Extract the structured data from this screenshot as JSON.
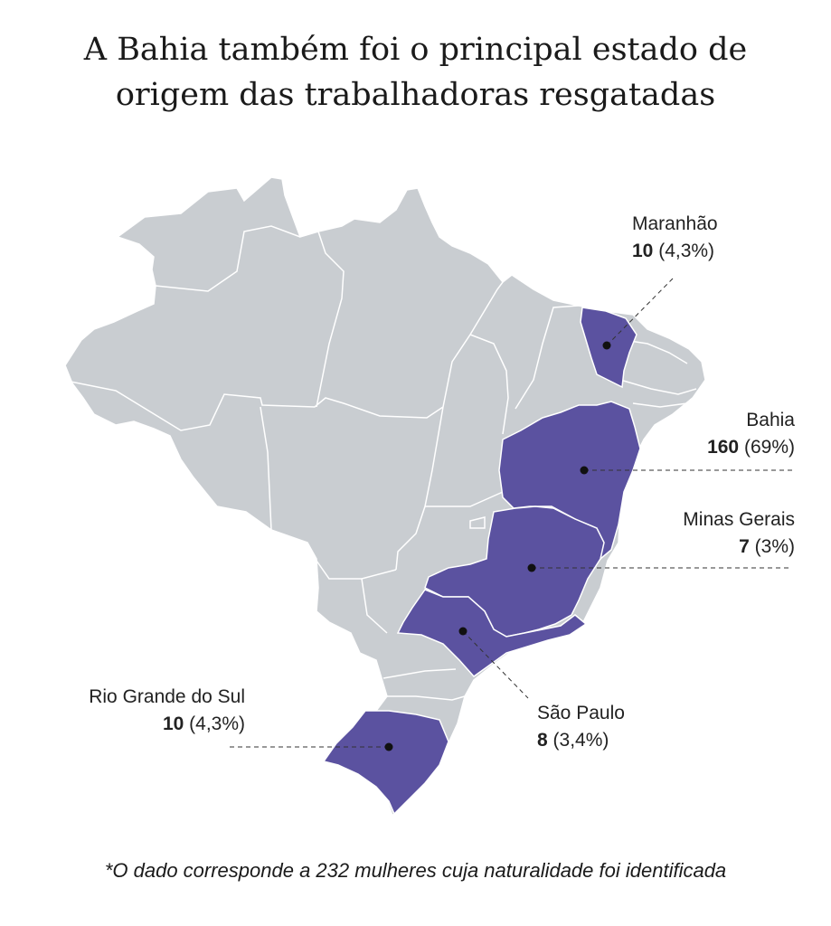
{
  "title": {
    "line1": "A Bahia também foi o principal estado de",
    "line2": "origem das trabalhadoras resgatadas"
  },
  "colors": {
    "state_default": "#c9cdd1",
    "state_highlight": "#5b52a0",
    "border": "#ffffff",
    "leader_line": "#333333"
  },
  "states": [
    {
      "id": "maranhao",
      "name": "Maranhão",
      "count": "10",
      "pct": "(4,3%)"
    },
    {
      "id": "bahia",
      "name": "Bahia",
      "count": "160",
      "pct": "(69%)"
    },
    {
      "id": "minas-gerais",
      "name": "Minas Gerais",
      "count": "7",
      "pct": "(3%)"
    },
    {
      "id": "sao-paulo",
      "name": "São Paulo",
      "count": "8",
      "pct": "(3,4%)"
    },
    {
      "id": "rio-grande-do-sul",
      "name": "Rio Grande do Sul",
      "count": "10",
      "pct": "(4,3%)"
    }
  ],
  "note": "*O dado corresponde a 232 mulheres cuja naturalidade foi identificada"
}
